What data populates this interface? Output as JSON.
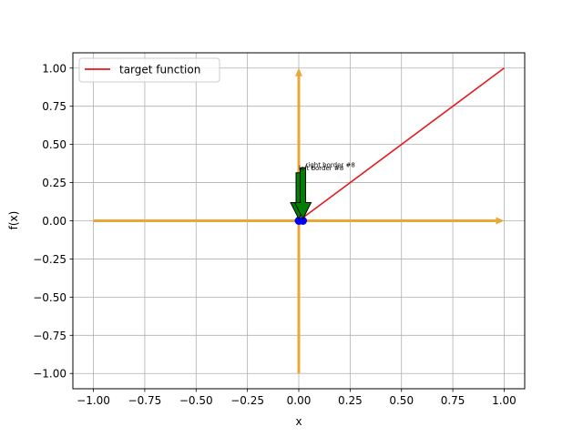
{
  "chart_data": {
    "type": "line",
    "title": "",
    "xlabel": "x",
    "ylabel": "f(x)",
    "xlim": [
      -1.1,
      1.1
    ],
    "ylim": [
      -1.1,
      1.1
    ],
    "grid": true,
    "legend_position": "top-left",
    "xticks": [
      -1.0,
      -0.75,
      -0.5,
      -0.25,
      0.0,
      0.25,
      0.5,
      0.75,
      1.0
    ],
    "yticks": [
      -1.0,
      -0.75,
      -0.5,
      -0.25,
      0.0,
      0.25,
      0.5,
      0.75,
      1.0
    ],
    "xtick_labels": [
      "−1.00",
      "−0.75",
      "−0.50",
      "−0.25",
      "0.00",
      "0.25",
      "0.50",
      "0.75",
      "1.00"
    ],
    "ytick_labels": [
      "−1.00",
      "−0.75",
      "−0.50",
      "−0.25",
      "0.00",
      "0.25",
      "0.50",
      "0.75",
      "1.00"
    ],
    "series": [
      {
        "name": "target function",
        "color": "#e41a1c",
        "x": [
          0.0,
          1.0
        ],
        "y": [
          0.0,
          1.0
        ]
      }
    ],
    "axis_arrows": {
      "color": "#e8a838",
      "horizontal": {
        "x_from": -1.0,
        "x_to": 1.0,
        "y": 0.0
      },
      "vertical": {
        "x": 0.0,
        "y_from": -1.0,
        "y_to": 1.0
      }
    },
    "points": [
      {
        "x": 0.0,
        "y": 0.0,
        "color": "#0000ff"
      },
      {
        "x": 0.02,
        "y": 0.0,
        "color": "#0000ff"
      }
    ],
    "annotations": [
      {
        "text": "left border #8",
        "x": 0.0,
        "y": 0.0,
        "text_x": 0.0,
        "text_y": 0.35,
        "arrow_color": "#008000"
      },
      {
        "text": "right border #8",
        "x": 0.02,
        "y": 0.0,
        "text_x": 0.02,
        "text_y": 0.37,
        "arrow_color": "#008000"
      }
    ]
  }
}
